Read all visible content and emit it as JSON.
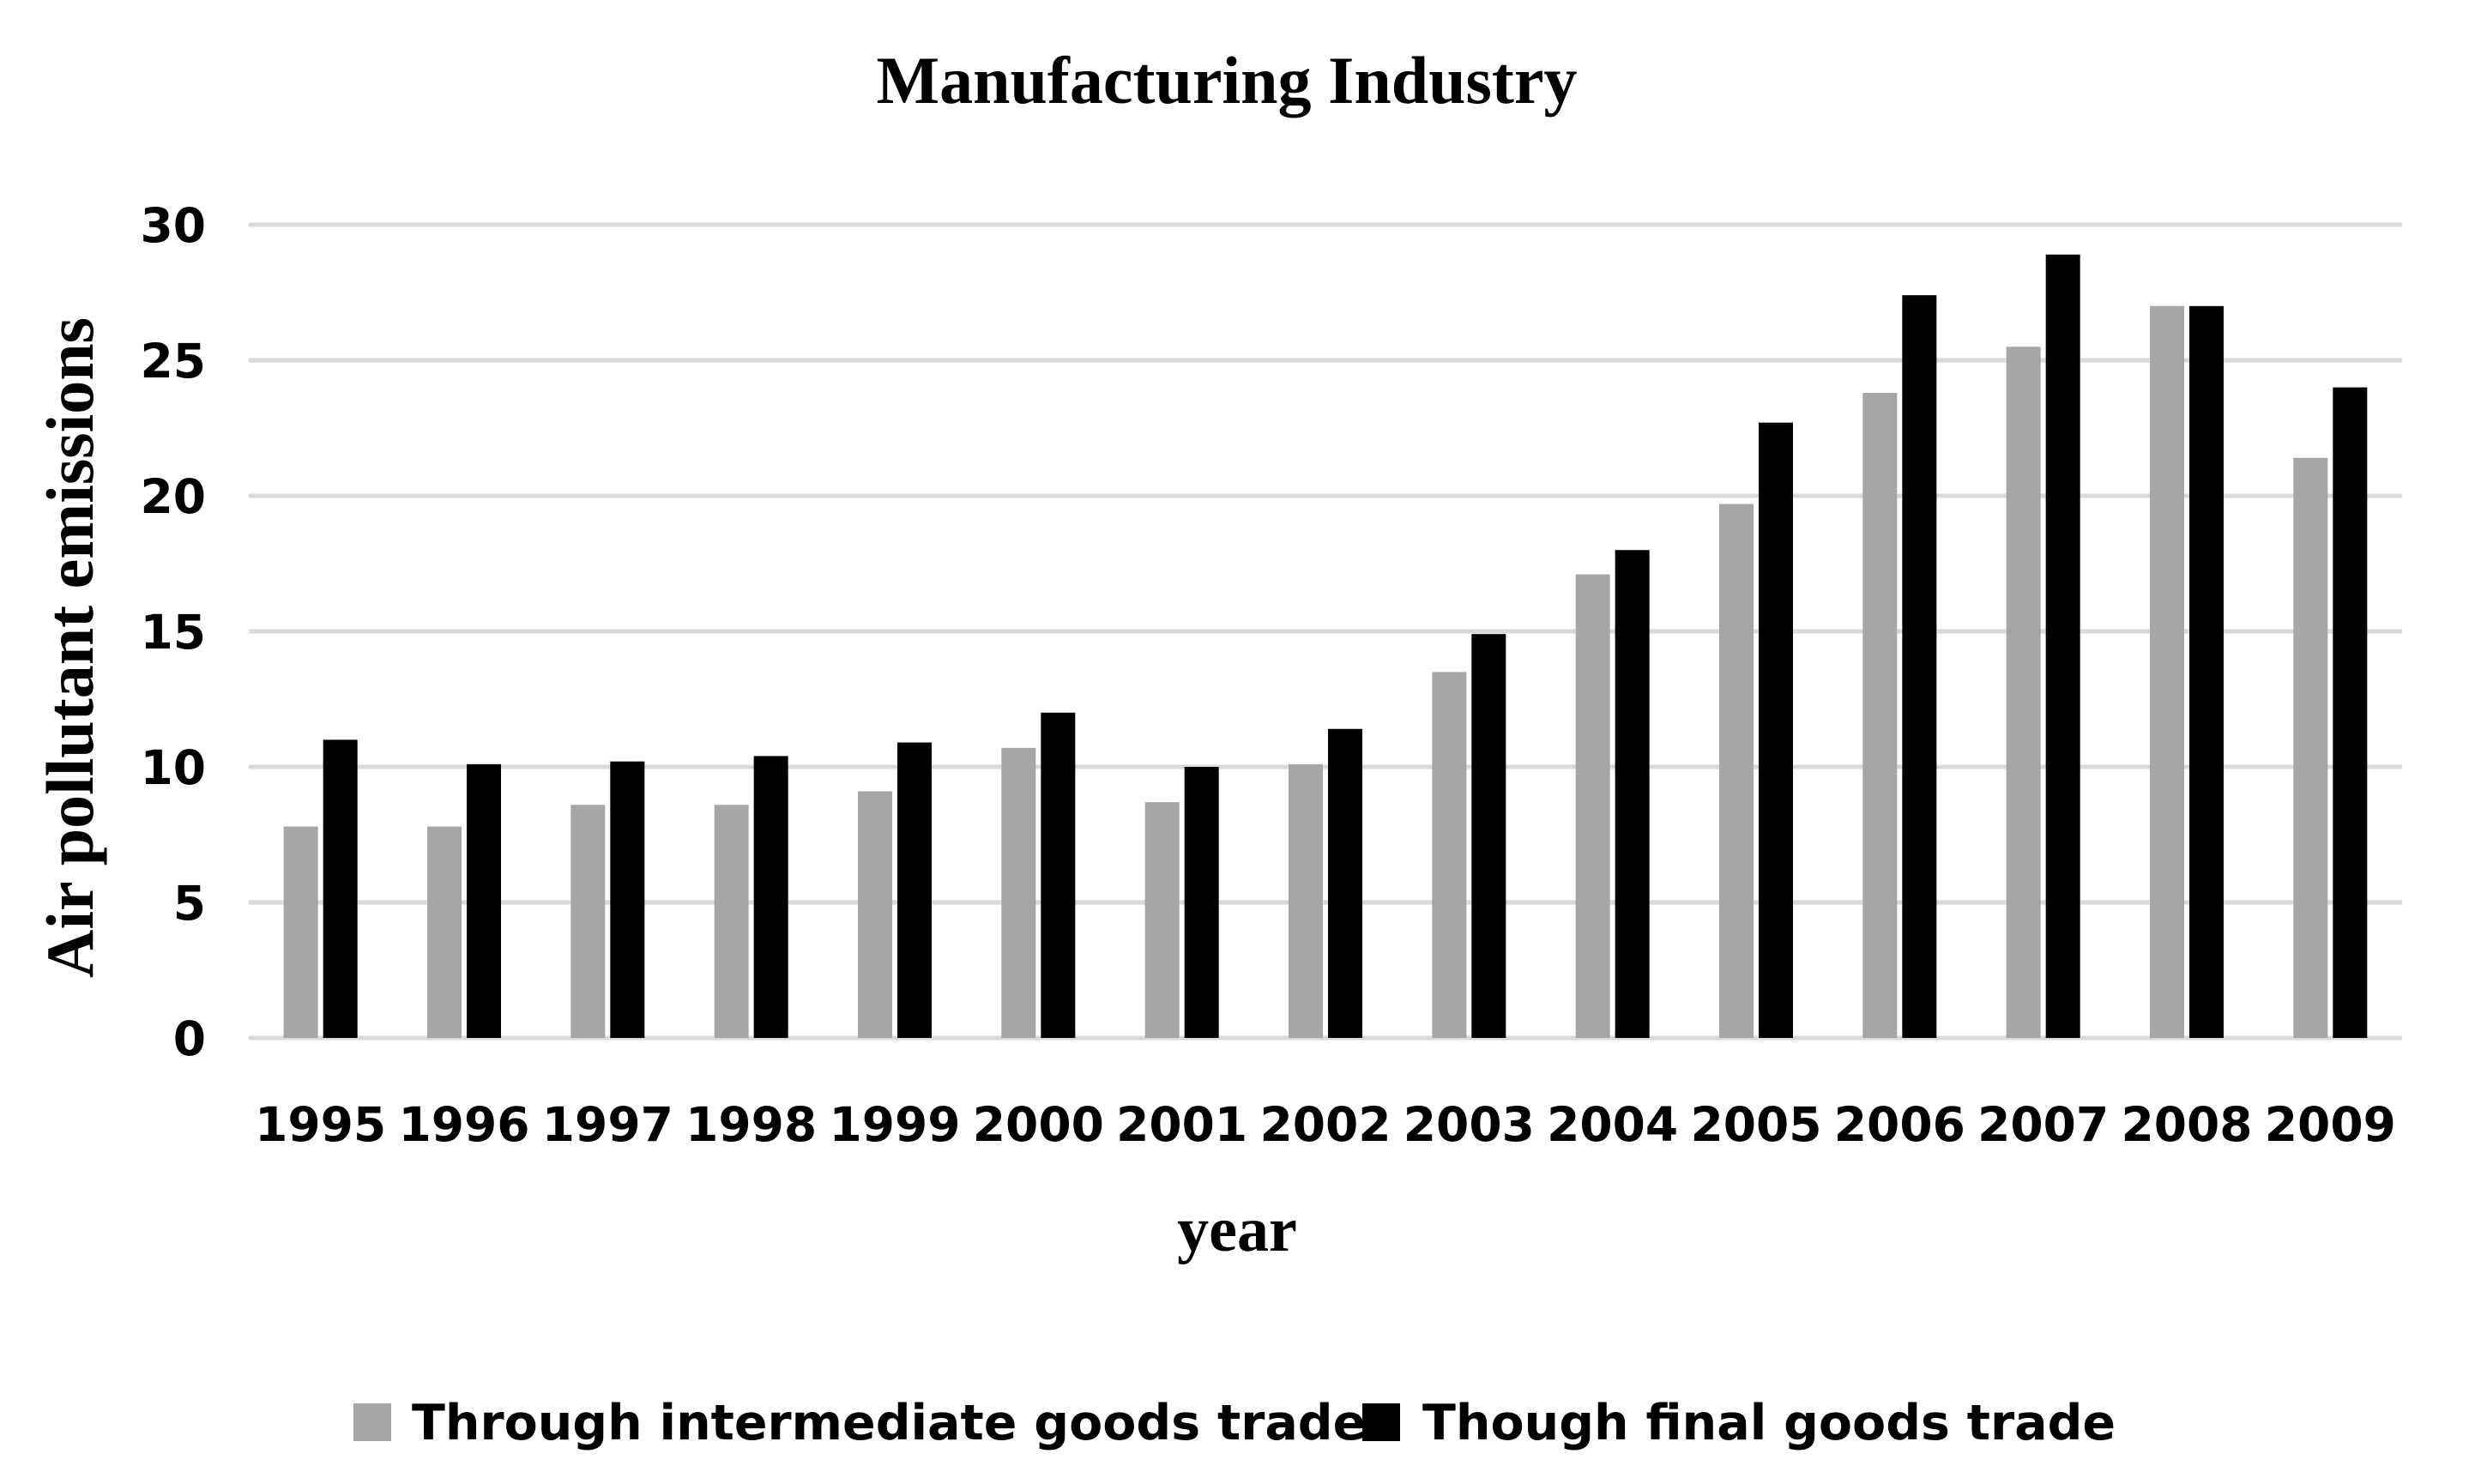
{
  "chart_data": {
    "type": "bar",
    "title": "Manufacturing Industry",
    "xlabel": "year",
    "ylabel": "Air pollutant emissions",
    "categories": [
      "1995",
      "1996",
      "1997",
      "1998",
      "1999",
      "2000",
      "2001",
      "2002",
      "2003",
      "2004",
      "2005",
      "2006",
      "2007",
      "2008",
      "2009"
    ],
    "series": [
      {
        "name": "Through intermediate goods trade",
        "color": "#a6a6a6",
        "values": [
          7.8,
          7.8,
          8.6,
          8.6,
          9.1,
          10.7,
          8.7,
          10.1,
          13.5,
          17.1,
          19.7,
          23.8,
          25.5,
          27.0,
          21.4
        ]
      },
      {
        "name": "Though final goods trade",
        "color": "#000000",
        "values": [
          11.0,
          10.1,
          10.2,
          10.4,
          10.9,
          12.0,
          10.0,
          11.4,
          14.9,
          18.0,
          22.7,
          27.4,
          28.9,
          27.0,
          24.0
        ]
      }
    ],
    "ylim": [
      0,
      30
    ],
    "yticks": [
      0,
      5,
      10,
      15,
      20,
      25,
      30
    ],
    "grid": true,
    "legend_position": "bottom"
  }
}
